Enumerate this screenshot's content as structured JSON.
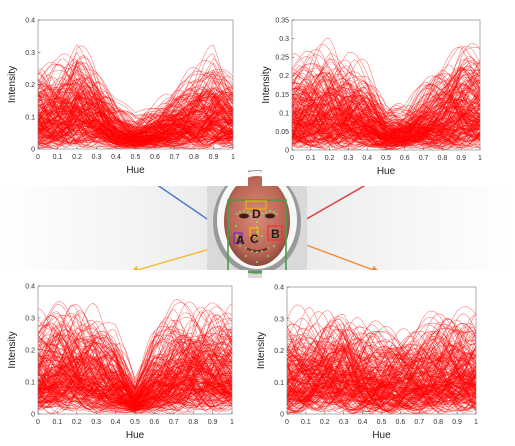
{
  "chart_data": [
    {
      "id": "top-left",
      "type": "line",
      "xlabel": "Hue",
      "ylabel": "Intensity",
      "xlim": [
        0,
        1
      ],
      "ylim": [
        0,
        0.4
      ],
      "xticks": [
        "0",
        "0.1",
        "0.2",
        "0.3",
        "0.4",
        "0.5",
        "0.6",
        "0.7",
        "0.8",
        "0.9",
        "1"
      ],
      "yticks": [
        "0",
        "0.1",
        "0.2",
        "0.3",
        "0.4"
      ],
      "series_color": "#ff0000",
      "series_count": 220,
      "envelope": {
        "x": [
          0,
          0.1,
          0.2,
          0.3,
          0.4,
          0.5,
          0.6,
          0.7,
          0.8,
          0.9,
          1
        ],
        "y": [
          0.3,
          0.32,
          0.39,
          0.3,
          0.18,
          0.12,
          0.16,
          0.22,
          0.28,
          0.34,
          0.25
        ]
      }
    },
    {
      "id": "top-right",
      "type": "line",
      "xlabel": "Hue",
      "ylabel": "Intensity",
      "xlim": [
        0,
        1
      ],
      "ylim": [
        0,
        0.35
      ],
      "xticks": [
        "0",
        "0.1",
        "0.2",
        "0.3",
        "0.4",
        "0.5",
        "0.6",
        "0.7",
        "0.8",
        "0.9",
        "1"
      ],
      "yticks": [
        "0",
        "0.05",
        "0.1",
        "0.15",
        "0.2",
        "0.25",
        "0.3",
        "0.35"
      ],
      "series_color": "#ff0000",
      "series_count": 220,
      "envelope": {
        "x": [
          0,
          0.1,
          0.2,
          0.3,
          0.4,
          0.5,
          0.6,
          0.7,
          0.8,
          0.9,
          1
        ],
        "y": [
          0.28,
          0.3,
          0.32,
          0.3,
          0.24,
          0.14,
          0.14,
          0.2,
          0.26,
          0.32,
          0.31
        ]
      }
    },
    {
      "id": "bottom-left",
      "type": "line",
      "xlabel": "Hue",
      "ylabel": "Intensity",
      "xlim": [
        0,
        1
      ],
      "ylim": [
        0,
        0.4
      ],
      "xticks": [
        "0",
        "0.1",
        "0.2",
        "0.3",
        "0.4",
        "0.5",
        "0.6",
        "0.7",
        "0.8",
        "0.9",
        "1"
      ],
      "yticks": [
        "0",
        "0.1",
        "0.2",
        "0.3",
        "0.4"
      ],
      "series_color": "#ff0000",
      "series_count": 220,
      "envelope": {
        "x": [
          0,
          0.1,
          0.2,
          0.3,
          0.4,
          0.5,
          0.6,
          0.7,
          0.8,
          0.9,
          1
        ],
        "y": [
          0.38,
          0.4,
          0.4,
          0.37,
          0.3,
          0.12,
          0.3,
          0.38,
          0.4,
          0.4,
          0.38
        ]
      }
    },
    {
      "id": "bottom-right",
      "type": "line",
      "xlabel": "Hue",
      "ylabel": "Intensity",
      "xlim": [
        0,
        1
      ],
      "ylim": [
        0,
        0.4
      ],
      "xticks": [
        "0",
        "0.1",
        "0.2",
        "0.3",
        "0.4",
        "0.5",
        "0.6",
        "0.7",
        "0.8",
        "0.9",
        "1"
      ],
      "yticks": [
        "0",
        "0.1",
        "0.2",
        "0.3",
        "0.4"
      ],
      "series_color": "#ff0000",
      "series_count": 220,
      "envelope": {
        "x": [
          0,
          0.1,
          0.2,
          0.3,
          0.4,
          0.5,
          0.6,
          0.7,
          0.8,
          0.9,
          1
        ],
        "y": [
          0.35,
          0.36,
          0.38,
          0.4,
          0.34,
          0.3,
          0.3,
          0.32,
          0.36,
          0.38,
          0.36
        ]
      }
    }
  ],
  "face": {
    "regions": [
      {
        "label": "A",
        "color": "#7b2cbf"
      },
      {
        "label": "B",
        "color": "#e53935"
      },
      {
        "label": "C",
        "color": "#f4b400"
      },
      {
        "label": "D",
        "color": "#f4b400"
      }
    ],
    "detection_box_color": "#43a047",
    "landmark_color": "#66ff66"
  },
  "connectors": [
    {
      "from_region": "A",
      "to_chart": "top-left",
      "color": "#4a7bd0"
    },
    {
      "from_region": "B",
      "to_chart": "top-right",
      "color": "#e53935"
    },
    {
      "from_region": "C",
      "to_chart": "bottom-left",
      "color": "#f5b82e"
    },
    {
      "from_region": "B",
      "to_chart": "bottom-right",
      "color": "#ef8a3c"
    }
  ]
}
